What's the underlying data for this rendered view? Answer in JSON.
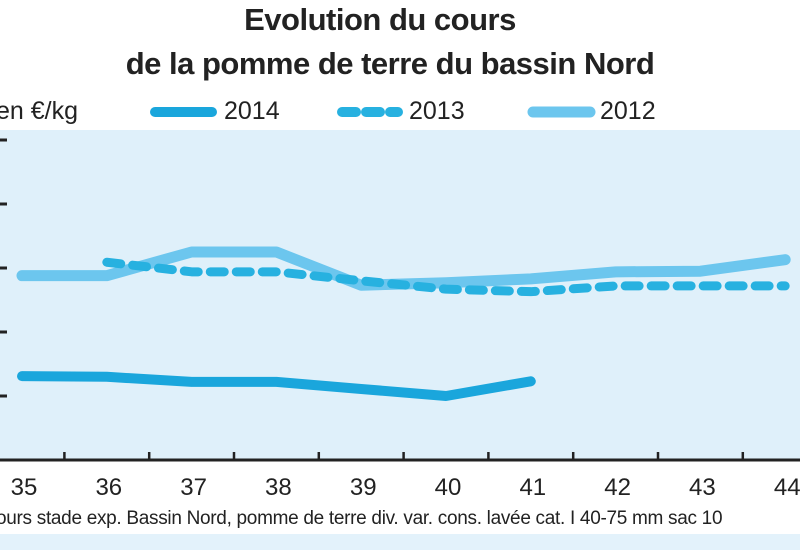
{
  "chart_data": {
    "type": "line",
    "title": "Evolution du cours",
    "subtitle": "de la pomme de terre du bassin Nord",
    "ylabel": "en €/kg",
    "xlabel": "",
    "x": [
      35,
      36,
      37,
      38,
      39,
      40,
      41,
      42,
      43,
      44
    ],
    "ylim": [
      0,
      5
    ],
    "grid": false,
    "legend": "top",
    "series": [
      {
        "name": "2014",
        "style": "solid",
        "color": "#1aa6dc",
        "values": [
          1.31,
          1.3,
          1.22,
          1.22,
          1.11,
          1.0,
          1.23,
          null,
          null,
          null
        ]
      },
      {
        "name": "2013",
        "style": "dashed",
        "color": "#27b1e0",
        "values": [
          null,
          3.09,
          2.94,
          2.94,
          2.8,
          2.67,
          2.63,
          2.72,
          2.72,
          2.72
        ]
      },
      {
        "name": "2012",
        "style": "solid",
        "color": "#6cc6ee",
        "values": [
          2.88,
          2.88,
          3.25,
          3.25,
          2.73,
          2.77,
          2.83,
          2.94,
          2.95,
          3.13
        ]
      }
    ],
    "source": "ours stade exp. Bassin Nord, pomme de terre div. var. cons. lavée cat. I 40-75 mm sac 10"
  }
}
